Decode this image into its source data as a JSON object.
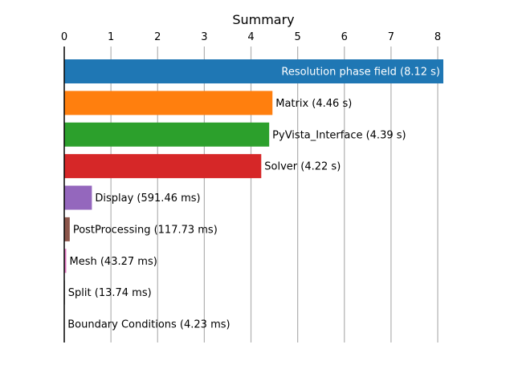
{
  "chart_data": {
    "type": "bar",
    "orientation": "horizontal",
    "title": "Summary",
    "xlabel": "",
    "ylabel": "",
    "xlim": [
      0,
      8.12
    ],
    "xticks": [
      0,
      1,
      2,
      3,
      4,
      5,
      6,
      7,
      8
    ],
    "grid": "vertical",
    "x_axis_position": "top",
    "categories": [
      "Resolution phase field",
      "Matrix",
      "PyVista_Interface",
      "Solver",
      "Display",
      "PostProcessing",
      "Mesh",
      "Split",
      "Boundary Conditions"
    ],
    "values": [
      8.12,
      4.46,
      4.39,
      4.22,
      0.59146,
      0.11773,
      0.04327,
      0.01374,
      0.00423
    ],
    "labels": [
      "Resolution phase field (8.12 s)",
      "Matrix (4.46 s)",
      "PyVista_Interface (4.39 s)",
      "Solver (4.22 s)",
      "Display (591.46 ms)",
      "PostProcessing (117.73 ms)",
      "Mesh (43.27 ms)",
      "Split (13.74 ms)",
      "Boundary Conditions (4.23 ms)"
    ],
    "colors": [
      "#1f77b4",
      "#ff7f0e",
      "#2ca02c",
      "#d62728",
      "#9467bd",
      "#8c564b",
      "#e377c2",
      "#7f7f7f",
      "#bcbd22"
    ],
    "inside_label_color": "#ffffff",
    "outside_label_color": "#000000"
  }
}
